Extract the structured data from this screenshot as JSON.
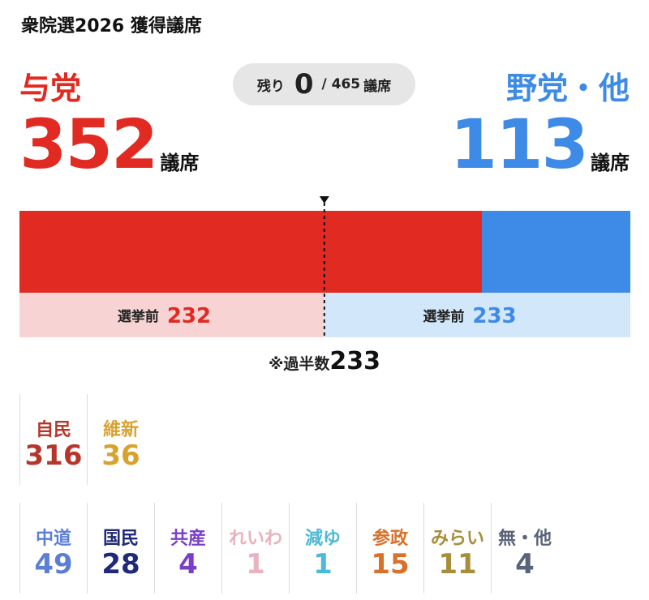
{
  "title": "衆院選2026 獲得議席",
  "unit": "議席",
  "ruling": {
    "label": "与党",
    "seats": "352",
    "color": "#e02a22"
  },
  "opposition": {
    "label": "野党・他",
    "seats": "113",
    "color": "#3d8be6"
  },
  "remaining": {
    "label": "残り",
    "value": "0",
    "total": "/ 465",
    "unit": "議席"
  },
  "majority": {
    "label": "※過半数",
    "value": "233"
  },
  "chart_data": {
    "type": "bar",
    "orientation": "horizontal-stacked",
    "total": 465,
    "majority_line": 233,
    "series": [
      {
        "name": "与党",
        "values": [
          352
        ],
        "color": "#e02a22"
      },
      {
        "name": "野党・他",
        "values": [
          113
        ],
        "color": "#3d8be6"
      }
    ],
    "previous": {
      "label": "選挙前",
      "ruling": 232,
      "opposition": 233,
      "ruling_color": "#f7d3d3",
      "opposition_color": "#d3e7fb"
    }
  },
  "ruling_parties": [
    {
      "name": "自民",
      "seats": "316",
      "color": "#b5372c"
    },
    {
      "name": "維新",
      "seats": "36",
      "color": "#d9a12e"
    }
  ],
  "other_parties": [
    {
      "name": "中道",
      "seats": "49",
      "color": "#5c7fd6"
    },
    {
      "name": "国民",
      "seats": "28",
      "color": "#1f2a78"
    },
    {
      "name": "共産",
      "seats": "4",
      "color": "#7a3fc8"
    },
    {
      "name": "れいわ",
      "seats": "1",
      "color": "#eab1bf"
    },
    {
      "name": "減ゆ",
      "seats": "1",
      "color": "#4fb9d8"
    },
    {
      "name": "参政",
      "seats": "15",
      "color": "#d8712a"
    },
    {
      "name": "みらい",
      "seats": "11",
      "color": "#a88d3a"
    },
    {
      "name": "無・他",
      "seats": "4",
      "color": "#5a6478"
    }
  ]
}
